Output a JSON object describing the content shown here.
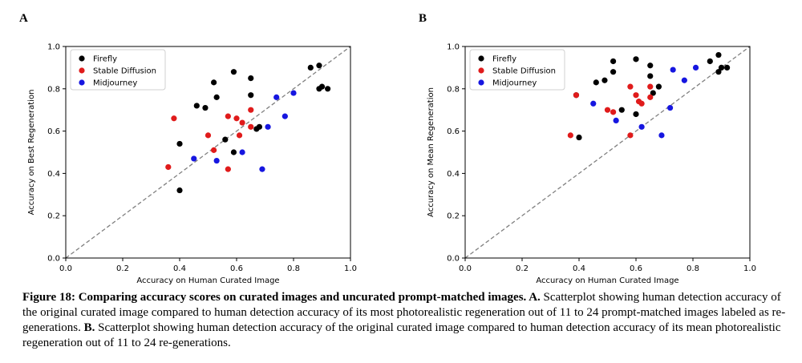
{
  "panels": {
    "a_label": "A",
    "b_label": "B"
  },
  "colors": {
    "Firefly": "#000000",
    "Stable Diffusion": "#e01b1b",
    "Midjourney": "#1616e0",
    "diagonal": "#808080"
  },
  "chart_data": [
    {
      "type": "scatter",
      "panel": "A",
      "title": "",
      "xlabel": "Accuracy on Human Curated Image",
      "ylabel": "Accuracy on Best Regeneration",
      "xlim": [
        0.0,
        1.0
      ],
      "ylim": [
        0.0,
        1.0
      ],
      "ticks": [
        "0.0",
        "0.2",
        "0.4",
        "0.6",
        "0.8",
        "1.0"
      ],
      "legend_position": "upper-left",
      "reference_line": "y = x (dashed)",
      "series": [
        {
          "name": "Firefly",
          "points": [
            [
              0.4,
              0.32
            ],
            [
              0.4,
              0.54
            ],
            [
              0.46,
              0.72
            ],
            [
              0.49,
              0.71
            ],
            [
              0.52,
              0.83
            ],
            [
              0.53,
              0.76
            ],
            [
              0.56,
              0.56
            ],
            [
              0.59,
              0.88
            ],
            [
              0.59,
              0.5
            ],
            [
              0.65,
              0.85
            ],
            [
              0.65,
              0.77
            ],
            [
              0.67,
              0.61
            ],
            [
              0.68,
              0.62
            ],
            [
              0.86,
              0.9
            ],
            [
              0.89,
              0.8
            ],
            [
              0.9,
              0.81
            ],
            [
              0.89,
              0.91
            ],
            [
              0.92,
              0.8
            ]
          ]
        },
        {
          "name": "Stable Diffusion",
          "points": [
            [
              0.36,
              0.43
            ],
            [
              0.38,
              0.66
            ],
            [
              0.5,
              0.58
            ],
            [
              0.52,
              0.51
            ],
            [
              0.57,
              0.67
            ],
            [
              0.57,
              0.42
            ],
            [
              0.6,
              0.66
            ],
            [
              0.61,
              0.58
            ],
            [
              0.62,
              0.64
            ],
            [
              0.65,
              0.62
            ],
            [
              0.65,
              0.7
            ]
          ]
        },
        {
          "name": "Midjourney",
          "points": [
            [
              0.45,
              0.47
            ],
            [
              0.53,
              0.46
            ],
            [
              0.62,
              0.5
            ],
            [
              0.69,
              0.42
            ],
            [
              0.71,
              0.62
            ],
            [
              0.74,
              0.76
            ],
            [
              0.77,
              0.67
            ],
            [
              0.8,
              0.78
            ]
          ]
        }
      ]
    },
    {
      "type": "scatter",
      "panel": "B",
      "title": "",
      "xlabel": "Accuracy on Human Curated Image",
      "ylabel": "Accuracy on Mean Regeneration",
      "xlim": [
        0.0,
        1.0
      ],
      "ylim": [
        0.0,
        1.0
      ],
      "ticks": [
        "0.0",
        "0.2",
        "0.4",
        "0.6",
        "0.8",
        "1.0"
      ],
      "legend_position": "upper-left",
      "reference_line": "y = x (dashed)",
      "series": [
        {
          "name": "Firefly",
          "points": [
            [
              0.39,
              0.77
            ],
            [
              0.4,
              0.57
            ],
            [
              0.46,
              0.83
            ],
            [
              0.49,
              0.84
            ],
            [
              0.52,
              0.93
            ],
            [
              0.52,
              0.88
            ],
            [
              0.55,
              0.7
            ],
            [
              0.6,
              0.94
            ],
            [
              0.6,
              0.68
            ],
            [
              0.65,
              0.91
            ],
            [
              0.65,
              0.86
            ],
            [
              0.66,
              0.78
            ],
            [
              0.68,
              0.81
            ],
            [
              0.86,
              0.93
            ],
            [
              0.89,
              0.96
            ],
            [
              0.89,
              0.88
            ],
            [
              0.9,
              0.9
            ],
            [
              0.92,
              0.9
            ]
          ]
        },
        {
          "name": "Stable Diffusion",
          "points": [
            [
              0.37,
              0.58
            ],
            [
              0.39,
              0.77
            ],
            [
              0.5,
              0.7
            ],
            [
              0.52,
              0.69
            ],
            [
              0.58,
              0.81
            ],
            [
              0.58,
              0.58
            ],
            [
              0.6,
              0.77
            ],
            [
              0.61,
              0.74
            ],
            [
              0.62,
              0.73
            ],
            [
              0.65,
              0.76
            ],
            [
              0.65,
              0.81
            ]
          ]
        },
        {
          "name": "Midjourney",
          "points": [
            [
              0.45,
              0.73
            ],
            [
              0.53,
              0.65
            ],
            [
              0.62,
              0.62
            ],
            [
              0.69,
              0.58
            ],
            [
              0.72,
              0.71
            ],
            [
              0.73,
              0.89
            ],
            [
              0.77,
              0.84
            ],
            [
              0.81,
              0.9
            ]
          ]
        }
      ]
    }
  ],
  "caption": {
    "bold": "Figure 18: Comparing accuracy scores on curated images and uncurated prompt-matched images. A.",
    "text_a": " Scatterplot showing human detection accuracy of the original curated image compared to human detection accuracy of its most photorealistic regeneration out of 11 to 24 prompt-matched images labeled as re-generations. ",
    "bold_b": "B.",
    "text_b": " Scatterplot showing human detection accuracy of the original curated image compared to human detection accuracy of its mean photorealistic regeneration out of 11 to 24 re-generations."
  }
}
